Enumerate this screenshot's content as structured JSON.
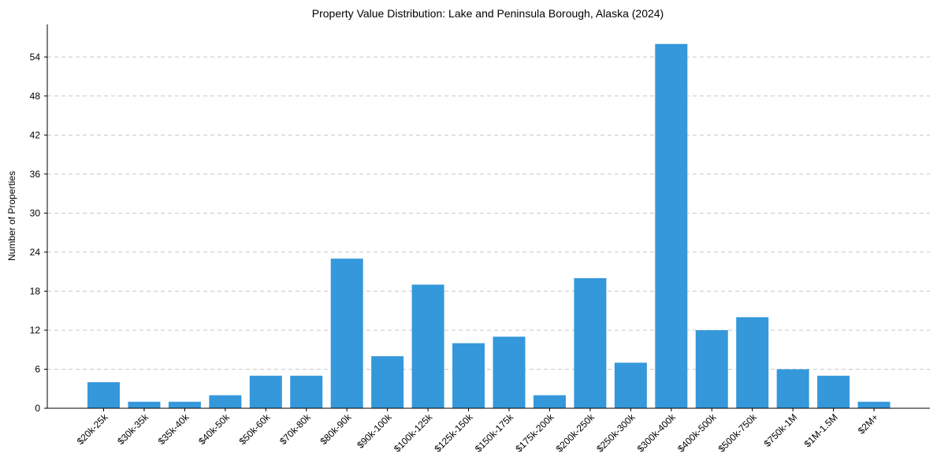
{
  "chart_data": {
    "type": "bar",
    "title": "Property Value Distribution: Lake and Peninsula Borough, Alaska (2024)",
    "xlabel": "",
    "ylabel": "Number of Properties",
    "categories": [
      "$20k-25k",
      "$30k-35k",
      "$35k-40k",
      "$40k-50k",
      "$50k-60k",
      "$70k-80k",
      "$80k-90k",
      "$90k-100k",
      "$100k-125k",
      "$125k-150k",
      "$150k-175k",
      "$175k-200k",
      "$200k-250k",
      "$250k-300k",
      "$300k-400k",
      "$400k-500k",
      "$500k-750k",
      "$750k-1M",
      "$1M-1.5M",
      "$2M+"
    ],
    "values": [
      4,
      1,
      1,
      2,
      5,
      5,
      23,
      8,
      19,
      10,
      11,
      2,
      20,
      7,
      56,
      12,
      14,
      6,
      5,
      1
    ],
    "ylim": [
      0,
      59
    ],
    "yticks": [
      0,
      6,
      12,
      18,
      24,
      30,
      36,
      42,
      48,
      54
    ],
    "grid": "y-dashed",
    "bar_color": "#3498db"
  }
}
